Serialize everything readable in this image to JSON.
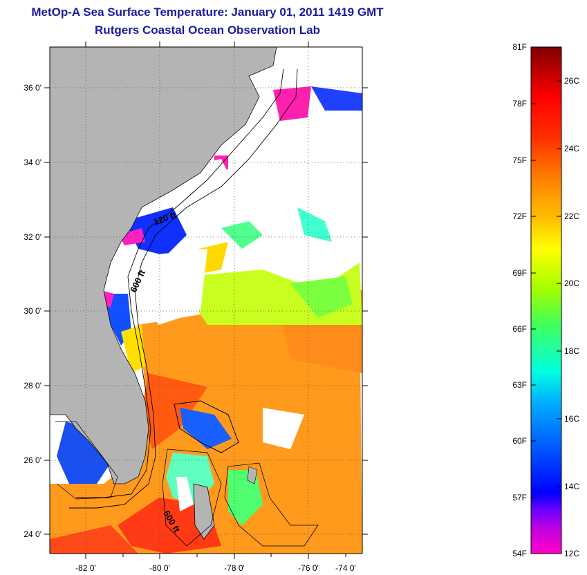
{
  "title": "MetOp-A Sea Surface Temperature:  January 01, 2011 1419 GMT",
  "subtitle": "Rutgers Coastal Ocean Observation Lab",
  "map": {
    "lon_labels": [
      "-82 0'",
      "-80 0'",
      "-78 0'",
      "-76 0'",
      "-74 0'"
    ],
    "lat_labels": [
      "36 0'",
      "34 0'",
      "32 0'",
      "30 0'",
      "28 0'",
      "26 0'",
      "24 0'"
    ],
    "contour_labels": [
      "120 ft",
      "600 ft",
      "600 ft"
    ],
    "colors": {
      "land": "#b4b4b4",
      "cloud": "#ffffff",
      "outline": "#000000"
    }
  },
  "colorbar": {
    "f_labels": [
      "81F",
      "78F",
      "75F",
      "72F",
      "69F",
      "66F",
      "63F",
      "60F",
      "57F",
      "54F"
    ],
    "c_labels": [
      "26C",
      "24C",
      "22C",
      "20C",
      "18C",
      "16C",
      "14C",
      "12C"
    ],
    "stops": [
      "#ff00c8",
      "#c000e0",
      "#7000ff",
      "#0000ff",
      "#0070ff",
      "#00d8ff",
      "#00ffb0",
      "#40ff40",
      "#b0ff00",
      "#ffff00",
      "#ffc000",
      "#ff8000",
      "#ff4000",
      "#ff0000",
      "#c00000",
      "#800000"
    ]
  }
}
